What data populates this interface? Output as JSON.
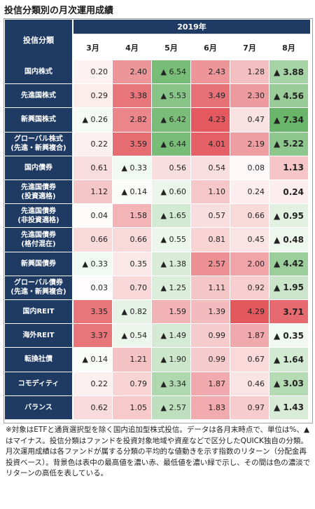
{
  "title": "投信分類別の月次運用成績",
  "header": {
    "category_label": "投信分類",
    "year_label": "2019年"
  },
  "colors": {
    "header_bg": "#1f3b63",
    "max": "#e0494f",
    "min": "#4fa84f",
    "neutral": "#ffffff"
  },
  "chart_data": {
    "type": "table",
    "unit": "%",
    "negative_marker": "▲",
    "months": [
      "3月",
      "4月",
      "5月",
      "6月",
      "7月",
      "8月"
    ],
    "rows": [
      {
        "label": "国内株式",
        "values": [
          "0.20",
          "2.40",
          "▲ 6.54",
          "2.43",
          "1.28",
          "▲ 3.88"
        ],
        "numeric": [
          0.2,
          2.4,
          -6.54,
          2.43,
          1.28,
          -3.88
        ]
      },
      {
        "label": "先進国株式",
        "values": [
          "0.29",
          "3.38",
          "▲ 5.53",
          "3.49",
          "2.30",
          "▲ 4.56"
        ],
        "numeric": [
          0.29,
          3.38,
          -5.53,
          3.49,
          2.3,
          -4.56
        ]
      },
      {
        "label": "新興国株式",
        "values": [
          "▲ 0.26",
          "2.82",
          "▲ 6.42",
          "4.23",
          "0.47",
          "▲ 7.34"
        ],
        "numeric": [
          -0.26,
          2.82,
          -6.42,
          4.23,
          0.47,
          -7.34
        ]
      },
      {
        "label": "グローバル株式\n(先進・新興複合)",
        "values": [
          "0.22",
          "3.59",
          "▲ 6.44",
          "4.01",
          "2.19",
          "▲ 5.22"
        ],
        "numeric": [
          0.22,
          3.59,
          -6.44,
          4.01,
          2.19,
          -5.22
        ]
      },
      {
        "label": "国内債券",
        "values": [
          "0.61",
          "▲ 0.33",
          "0.56",
          "0.54",
          "0.08",
          "1.13"
        ],
        "numeric": [
          0.61,
          -0.33,
          0.56,
          0.54,
          0.08,
          1.13
        ]
      },
      {
        "label": "先進国債券\n(投資適格)",
        "values": [
          "1.12",
          "▲ 0.14",
          "▲ 0.60",
          "1.10",
          "0.24",
          "0.24"
        ],
        "numeric": [
          1.12,
          -0.14,
          -0.6,
          1.1,
          0.24,
          0.24
        ]
      },
      {
        "label": "先進国債券\n(非投資適格)",
        "values": [
          "0.04",
          "1.58",
          "▲ 1.65",
          "0.57",
          "0.66",
          "▲ 0.95"
        ],
        "numeric": [
          0.04,
          1.58,
          -1.65,
          0.57,
          0.66,
          -0.95
        ]
      },
      {
        "label": "先進国債券\n(格付混在)",
        "values": [
          "0.66",
          "0.66",
          "▲ 0.55",
          "0.81",
          "0.45",
          "▲ 0.48"
        ],
        "numeric": [
          0.66,
          0.66,
          -0.55,
          0.81,
          0.45,
          -0.48
        ]
      },
      {
        "label": "新興国債券",
        "values": [
          "▲ 0.33",
          "0.35",
          "▲ 1.38",
          "2.57",
          "2.00",
          "▲ 4.42"
        ],
        "numeric": [
          -0.33,
          0.35,
          -1.38,
          2.57,
          2.0,
          -4.42
        ]
      },
      {
        "label": "グローバル債券\n(先進・新興複合)",
        "values": [
          "0.03",
          "0.70",
          "▲ 1.25",
          "1.11",
          "0.92",
          "▲ 1.95"
        ],
        "numeric": [
          0.03,
          0.7,
          -1.25,
          1.11,
          0.92,
          -1.95
        ]
      },
      {
        "label": "国内REIT",
        "values": [
          "3.35",
          "▲ 0.82",
          "1.59",
          "1.39",
          "4.29",
          "3.71"
        ],
        "numeric": [
          3.35,
          -0.82,
          1.59,
          1.39,
          4.29,
          3.71
        ]
      },
      {
        "label": "海外REIT",
        "values": [
          "3.37",
          "▲ 0.54",
          "▲ 1.49",
          "0.99",
          "1.87",
          "▲ 0.35"
        ],
        "numeric": [
          3.37,
          -0.54,
          -1.49,
          0.99,
          1.87,
          -0.35
        ]
      },
      {
        "label": "転換社債",
        "values": [
          "▲ 0.14",
          "1.21",
          "▲ 1.90",
          "0.99",
          "0.67",
          "▲ 1.64"
        ],
        "numeric": [
          -0.14,
          1.21,
          -1.9,
          0.99,
          0.67,
          -1.64
        ]
      },
      {
        "label": "コモディティ",
        "values": [
          "0.22",
          "0.79",
          "▲ 3.34",
          "1.87",
          "0.46",
          "▲ 3.03"
        ],
        "numeric": [
          0.22,
          0.79,
          -3.34,
          1.87,
          0.46,
          -3.03
        ]
      },
      {
        "label": "バランス",
        "values": [
          "0.62",
          "1.05",
          "▲ 2.57",
          "1.83",
          "0.97",
          "▲ 1.43"
        ],
        "numeric": [
          0.62,
          1.05,
          -2.57,
          1.83,
          0.97,
          -1.43
        ]
      }
    ]
  },
  "note": "※対象はETFと通貨選択型を除く国内追加型株式投信。データは各月末時点で、単位は%、▲はマイナス。投信分類はファンドを投資対象地域や資産などで区分したQUICK独自の分類。月次運用成績は各ファンドが属する分類の平均的な値動きを示す指数のリターン（分配金再投資ベース）。背景色は表中の最高値を濃い赤、最低値を濃い緑で示し、その間は色の濃淡でリターンの高低を表している。"
}
